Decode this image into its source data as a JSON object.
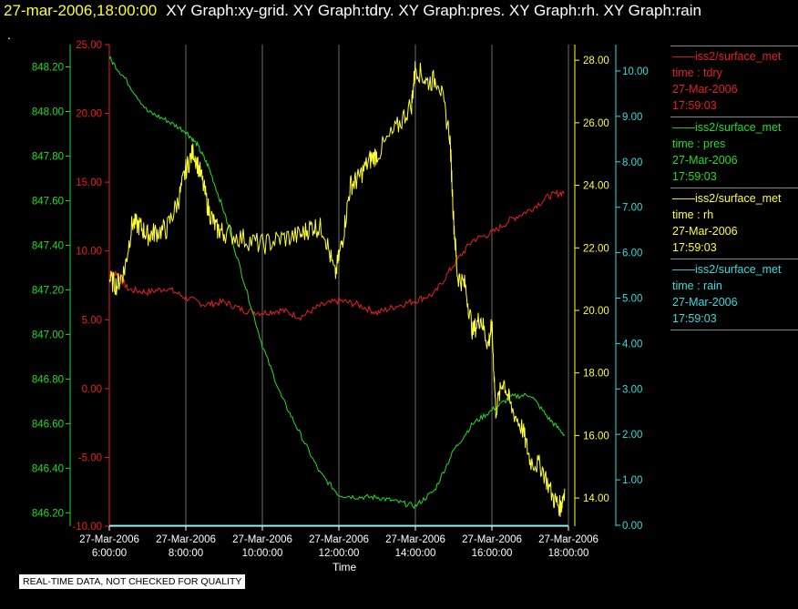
{
  "header": {
    "timestamp": "27-mar-2006,18:00:00",
    "title": "XY Graph:xy-grid.  XY Graph:tdry.  XY Graph:pres.  XY Graph:rh.  XY Graph:rain"
  },
  "dot": ".",
  "notice": "REAL-TIME DATA, NOT CHECKED FOR QUALITY",
  "colors": {
    "tdry": "#e62020",
    "pres": "#22dd22",
    "rh": "#ffff33",
    "rain": "#33dddd",
    "grid": "#888888",
    "background": "#000000"
  },
  "legend": [
    {
      "name": "iss2/surface_met",
      "field": "time : tdry",
      "date": "27-Mar-2006",
      "time": "17:59:03",
      "color": "#e62020"
    },
    {
      "name": "iss2/surface_met",
      "field": "time : pres",
      "date": "27-Mar-2006",
      "time": "17:59:03",
      "color": "#22dd22"
    },
    {
      "name": "iss2/surface_met",
      "field": "time : rh",
      "date": "27-Mar-2006",
      "time": "17:59:03",
      "color": "#ffff33"
    },
    {
      "name": "iss2/surface_met",
      "field": "time : rain",
      "date": "27-Mar-2006",
      "time": "17:59:03",
      "color": "#33dddd"
    }
  ],
  "chart_data": {
    "type": "line",
    "xlabel": "Time",
    "x_ticks": [
      {
        "date": "27-Mar-2006",
        "time": "6:00:00"
      },
      {
        "date": "27-Mar-2006",
        "time": "8:00:00"
      },
      {
        "date": "27-Mar-2006",
        "time": "10:00:00"
      },
      {
        "date": "27-Mar-2006",
        "time": "12:00:00"
      },
      {
        "date": "27-Mar-2006",
        "time": "14:00:00"
      },
      {
        "date": "27-Mar-2006",
        "time": "16:00:00"
      },
      {
        "date": "27-Mar-2006",
        "time": "18:00:00"
      }
    ],
    "xlim_hours": [
      6,
      18
    ],
    "grid": "vertical",
    "axes": {
      "tdry": {
        "ticks": [
          "25.00",
          "20.00",
          "15.00",
          "10.00",
          "5.00",
          "0.00",
          "-5.00",
          "-10.00"
        ],
        "ylim": [
          -10,
          25
        ]
      },
      "pres": {
        "ticks": [
          "848.20",
          "848.00",
          "847.80",
          "847.60",
          "847.40",
          "847.20",
          "847.00",
          "846.80",
          "846.60",
          "846.40",
          "846.20"
        ],
        "ylim": [
          846.14,
          848.3
        ]
      },
      "rh": {
        "ticks": [
          "28.00",
          "26.00",
          "24.00",
          "22.00",
          "20.00",
          "18.00",
          "16.00",
          "14.00"
        ],
        "ylim": [
          13.1,
          28.5
        ]
      },
      "rain": {
        "ticks": [
          "10.00",
          "9.00",
          "8.00",
          "7.00",
          "6.00",
          "5.00",
          "4.00",
          "3.00",
          "2.00",
          "1.00",
          "0.00"
        ],
        "ylim": [
          -0.02,
          10.58
        ]
      }
    },
    "series": [
      {
        "name": "tdry",
        "axis": "tdry",
        "x": [
          6.0,
          6.2,
          6.5,
          7.0,
          7.5,
          8.0,
          8.5,
          9.0,
          9.5,
          10.0,
          10.5,
          11.0,
          11.5,
          12.0,
          12.5,
          13.0,
          13.5,
          14.0,
          14.5,
          15.0,
          15.5,
          16.0,
          16.5,
          17.0,
          17.5,
          17.9
        ],
        "y": [
          8.2,
          8.4,
          7.2,
          7.0,
          7.3,
          6.6,
          6.1,
          6.3,
          5.7,
          5.5,
          5.7,
          5.2,
          6.0,
          6.4,
          6.1,
          5.5,
          6.0,
          6.4,
          6.9,
          9.0,
          10.8,
          11.3,
          12.3,
          13.0,
          14.0,
          14.3
        ]
      },
      {
        "name": "pres",
        "axis": "pres",
        "x": [
          6.0,
          6.4,
          7.0,
          7.5,
          8.0,
          8.3,
          8.6,
          9.0,
          9.5,
          10.0,
          10.5,
          11.0,
          11.5,
          12.0,
          12.5,
          13.0,
          13.5,
          14.0,
          14.5,
          15.0,
          15.5,
          16.0,
          16.5,
          17.0,
          17.5,
          17.9
        ],
        "y": [
          848.24,
          848.15,
          848.0,
          847.96,
          847.91,
          847.85,
          847.75,
          847.55,
          847.25,
          846.95,
          846.72,
          846.55,
          846.38,
          846.28,
          846.27,
          846.27,
          846.25,
          846.23,
          846.3,
          846.48,
          846.6,
          846.66,
          846.72,
          846.73,
          846.62,
          846.55
        ]
      },
      {
        "name": "rh",
        "axis": "rh",
        "x": [
          6.0,
          6.2,
          6.4,
          6.6,
          6.8,
          7.0,
          7.2,
          7.5,
          7.8,
          8.0,
          8.2,
          8.4,
          8.6,
          8.8,
          9.0,
          9.5,
          10.0,
          10.5,
          11.0,
          11.3,
          11.6,
          11.9,
          12.1,
          12.3,
          12.5,
          12.8,
          13.0,
          13.5,
          13.9,
          14.0,
          14.3,
          14.6,
          14.9,
          15.0,
          15.1,
          15.3,
          15.5,
          15.7,
          15.9,
          16.0,
          16.1,
          16.3,
          16.5,
          16.8,
          17.0,
          17.3,
          17.6,
          17.8,
          17.9
        ],
        "y": [
          21.0,
          20.8,
          21.3,
          22.8,
          22.7,
          22.4,
          22.5,
          22.6,
          23.5,
          24.5,
          25.1,
          24.3,
          23.2,
          22.6,
          22.5,
          22.3,
          22.1,
          22.3,
          22.4,
          22.7,
          22.6,
          21.1,
          22.3,
          24.0,
          24.2,
          24.8,
          25.0,
          25.8,
          26.6,
          27.8,
          27.3,
          27.4,
          25.6,
          22.9,
          21.1,
          20.8,
          19.3,
          19.8,
          18.9,
          19.5,
          16.8,
          17.8,
          16.9,
          16.2,
          15.2,
          15.0,
          14.0,
          13.7,
          14.3
        ]
      },
      {
        "name": "rain",
        "axis": "rain",
        "x": [
          6.0,
          18.0
        ],
        "y": [
          0.0,
          0.0
        ]
      }
    ]
  }
}
